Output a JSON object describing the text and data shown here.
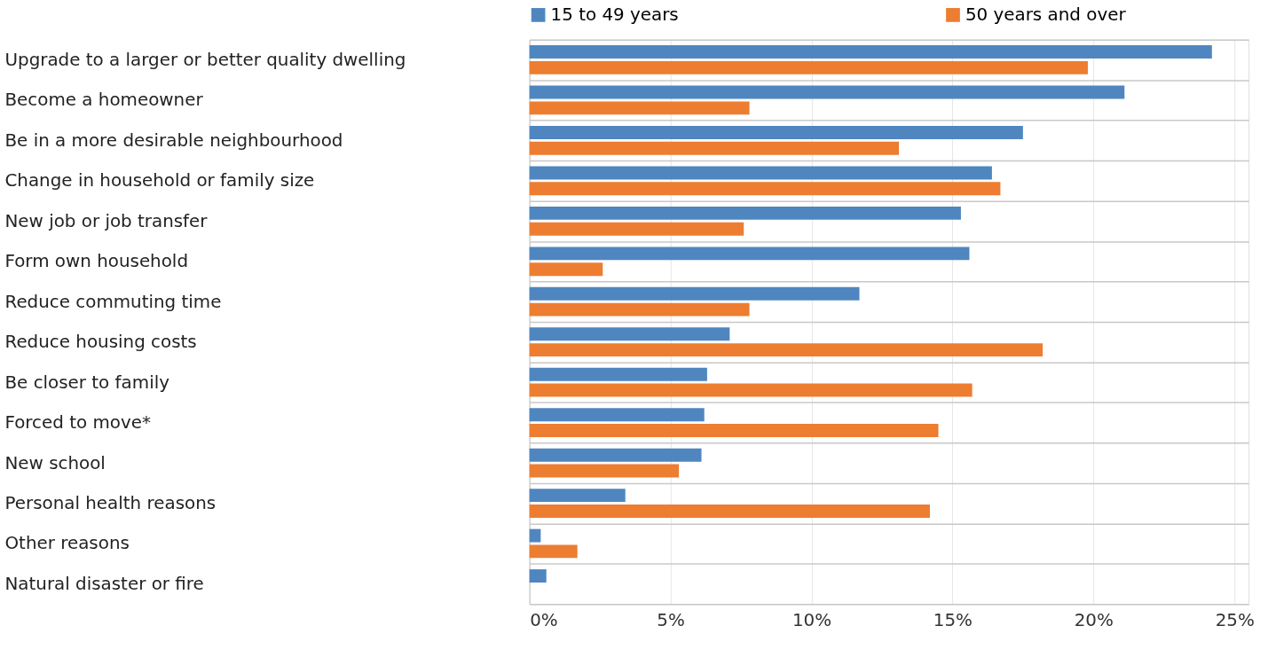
{
  "chart_data": {
    "type": "bar",
    "orientation": "horizontal",
    "categories": [
      "Upgrade to a larger or better quality dwelling",
      "Become a homeowner",
      "Be in a more desirable neighbourhood",
      "Change in household or family size",
      "New job or job transfer",
      "Form own household",
      "Reduce commuting time",
      "Reduce housing costs",
      "Be closer to family",
      "Forced to move*",
      "New school",
      "Personal health reasons",
      "Other reasons",
      "Natural disaster or fire"
    ],
    "series": [
      {
        "name": "15 to 49 years",
        "color": "#4f86c0",
        "values": [
          24.2,
          21.1,
          17.5,
          16.4,
          15.3,
          15.6,
          11.7,
          7.1,
          6.3,
          6.2,
          6.1,
          3.4,
          0.4,
          0.6
        ]
      },
      {
        "name": "50 years and over",
        "color": "#ed7d31",
        "values": [
          19.8,
          7.8,
          13.1,
          16.7,
          7.6,
          2.6,
          7.8,
          18.2,
          15.7,
          14.5,
          5.3,
          14.2,
          1.7,
          null
        ]
      }
    ],
    "xlim": [
      0,
      25.5
    ],
    "xticks": [
      {
        "value": 0,
        "label": "0%"
      },
      {
        "value": 5,
        "label": "5%"
      },
      {
        "value": 10,
        "label": "10%"
      },
      {
        "value": 15,
        "label": "15%"
      },
      {
        "value": 20,
        "label": "20%"
      },
      {
        "value": 25,
        "label": "25%"
      }
    ],
    "grid": true,
    "legend": "top"
  }
}
